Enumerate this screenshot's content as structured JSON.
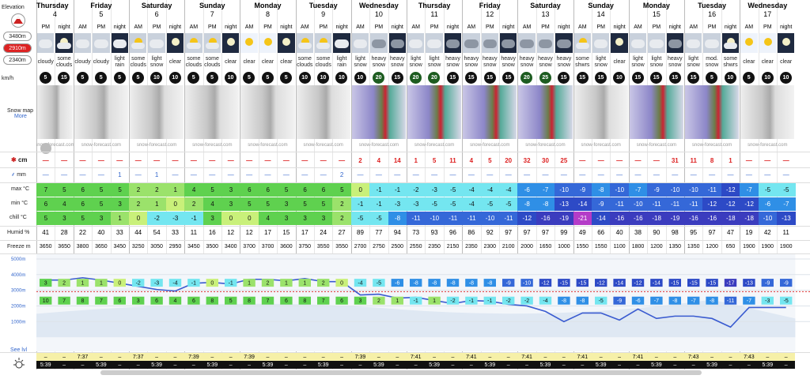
{
  "left": {
    "elevation": "Elevation",
    "levels": [
      {
        "value": 3480,
        "label": "3480m"
      },
      {
        "value": 2910,
        "label": "2910m"
      },
      {
        "value": 2340,
        "label": "2340m"
      }
    ],
    "wind_unit": "km/h",
    "snow_map": "Snow map",
    "more": "More",
    "snow_unit": "cm",
    "rain_unit": "mm",
    "max": "max °C",
    "min": "min °C",
    "chill": "chill °C",
    "humid": "Humid %",
    "freeze": "Freeze m",
    "sea_level": "See lvl"
  },
  "days": [
    {
      "name": "Thursday",
      "date": "4",
      "periods": [
        "PM",
        "night"
      ]
    },
    {
      "name": "Friday",
      "date": "5",
      "periods": [
        "AM",
        "PM",
        "night"
      ]
    },
    {
      "name": "Saturday",
      "date": "6",
      "periods": [
        "AM",
        "PM",
        "night"
      ]
    },
    {
      "name": "Sunday",
      "date": "7",
      "periods": [
        "AM",
        "PM",
        "night"
      ]
    },
    {
      "name": "Monday",
      "date": "8",
      "periods": [
        "AM",
        "PM",
        "night"
      ]
    },
    {
      "name": "Tuesday",
      "date": "9",
      "periods": [
        "AM",
        "PM",
        "night"
      ]
    },
    {
      "name": "Wednesday",
      "date": "10",
      "periods": [
        "AM",
        "PM",
        "night"
      ]
    },
    {
      "name": "Thursday",
      "date": "11",
      "periods": [
        "AM",
        "PM",
        "night"
      ]
    },
    {
      "name": "Friday",
      "date": "12",
      "periods": [
        "AM",
        "PM",
        "night"
      ]
    },
    {
      "name": "Saturday",
      "date": "13",
      "periods": [
        "AM",
        "PM",
        "night"
      ]
    },
    {
      "name": "Sunday",
      "date": "14",
      "periods": [
        "AM",
        "PM",
        "night"
      ]
    },
    {
      "name": "Monday",
      "date": "15",
      "periods": [
        "AM",
        "PM",
        "night"
      ]
    },
    {
      "name": "Tuesday",
      "date": "16",
      "periods": [
        "AM",
        "PM",
        "night"
      ]
    },
    {
      "name": "Wednesday",
      "date": "17",
      "periods": [
        "AM",
        "PM",
        "night"
      ]
    }
  ],
  "rows": {
    "summary": [
      "cloudy",
      "some clouds",
      "cloudy",
      "cloudy",
      "light rain",
      "some clouds",
      "light snow",
      "clear",
      "some clouds",
      "some clouds",
      "clear",
      "clear",
      "clear",
      "clear",
      "some clouds",
      "some clouds",
      "light rain",
      "light snow",
      "heavy snow",
      "heavy snow",
      "light snow",
      "light snow",
      "heavy snow",
      "heavy snow",
      "heavy snow",
      "heavy snow",
      "heavy snow",
      "heavy snow",
      "heavy snow",
      "some shwrs",
      "light snow",
      "clear",
      "light snow",
      "light snow",
      "heavy snow",
      "light snow",
      "mod. snow",
      "some shwrs",
      "clear",
      "clear",
      "clear"
    ],
    "wind": [
      5,
      15,
      5,
      5,
      5,
      5,
      10,
      10,
      5,
      5,
      10,
      5,
      5,
      5,
      10,
      10,
      10,
      10,
      20,
      15,
      20,
      20,
      15,
      15,
      15,
      15,
      20,
      25,
      15,
      15,
      15,
      10,
      15,
      15,
      15,
      15,
      5,
      10,
      5,
      10,
      10
    ],
    "snow": [
      "—",
      "—",
      "—",
      "—",
      "—",
      "—",
      "—",
      "—",
      "—",
      "—",
      "—",
      "—",
      "—",
      "—",
      "—",
      "—",
      "—",
      2,
      4,
      14,
      1,
      5,
      11,
      4,
      5,
      20,
      32,
      30,
      25,
      "—",
      "—",
      "—",
      "—",
      "—",
      31,
      11,
      8,
      1,
      "—",
      "—",
      "—"
    ],
    "rain": [
      "—",
      "—",
      "—",
      "—",
      1,
      "—",
      1,
      "—",
      "—",
      "—",
      "—",
      "—",
      "—",
      "—",
      "—",
      "—",
      2,
      "—",
      "—",
      "—",
      "—",
      "—",
      "—",
      "—",
      "—",
      "—",
      "—",
      "—",
      "—",
      "—",
      "—",
      "—",
      "—",
      "—",
      "—",
      "—",
      "—",
      "—",
      "—",
      "—",
      "—"
    ],
    "max": [
      7,
      5,
      6,
      5,
      5,
      2,
      2,
      1,
      4,
      5,
      3,
      6,
      6,
      5,
      6,
      6,
      5,
      0,
      -1,
      -1,
      -2,
      -3,
      -5,
      -4,
      -4,
      -4,
      -6,
      -7,
      -10,
      -9,
      -8,
      -10,
      -7,
      -9,
      -10,
      -10,
      -11,
      -12,
      -7,
      -5,
      -5
    ],
    "min": [
      6,
      4,
      6,
      5,
      3,
      2,
      1,
      0,
      2,
      4,
      3,
      5,
      5,
      3,
      5,
      5,
      2,
      -1,
      -1,
      -3,
      -3,
      -5,
      -5,
      -4,
      -5,
      -5,
      -8,
      -8,
      -13,
      -14,
      -9,
      -11,
      -10,
      -11,
      -11,
      -11,
      -12,
      -12,
      -12,
      -6,
      -7
    ],
    "chill": [
      5,
      3,
      5,
      3,
      1,
      0,
      -2,
      -3,
      -1,
      3,
      0,
      0,
      4,
      3,
      3,
      3,
      2,
      -5,
      -5,
      -8,
      -11,
      -10,
      -11,
      -11,
      -10,
      -11,
      -12,
      -16,
      -19,
      -21,
      -14,
      -16,
      -16,
      -18,
      -19,
      -16,
      -16,
      -18,
      -18,
      -10,
      -13
    ],
    "humid": [
      41,
      28,
      22,
      40,
      33,
      44,
      54,
      33,
      11,
      16,
      12,
      12,
      17,
      15,
      17,
      24,
      27,
      89,
      77,
      94,
      73,
      93,
      96,
      86,
      92,
      97,
      97,
      97,
      99,
      49,
      66,
      40,
      38,
      90,
      98,
      95,
      97,
      47,
      19,
      42,
      11
    ],
    "freeze": [
      3650,
      3650,
      3800,
      3650,
      3450,
      3250,
      3050,
      2950,
      3450,
      3500,
      3400,
      3700,
      3700,
      3600,
      3750,
      3550,
      3550,
      2700,
      2750,
      2500,
      2550,
      2350,
      2150,
      2350,
      2300,
      2100,
      2000,
      1650,
      1000,
      1550,
      1550,
      1100,
      1800,
      1200,
      1350,
      1350,
      1200,
      650,
      1900,
      1900,
      1900
    ]
  },
  "watermark": "snow-forecast.com",
  "chart": {
    "ylim": [
      -900,
      5300
    ],
    "yticks": [
      {
        "value": 5000,
        "label": "5000m"
      },
      {
        "value": 4000,
        "label": "4000m"
      },
      {
        "value": 3000,
        "label": "3000m"
      },
      {
        "value": 2000,
        "label": "2000m"
      },
      {
        "value": 1000,
        "label": "1000m"
      }
    ],
    "upper_temps": [
      3,
      2,
      1,
      1,
      0,
      -2,
      -3,
      -4,
      -1,
      0,
      -1,
      1,
      2,
      1,
      1,
      2,
      0,
      -4,
      -5,
      -6,
      -8,
      -8,
      -8,
      -8,
      -8,
      -9,
      -10,
      -12,
      -15,
      -15,
      -12,
      -14,
      -12,
      -14,
      -15,
      -15,
      -15,
      -17,
      -13,
      -9,
      -9
    ],
    "lower_temps": [
      10,
      7,
      8,
      7,
      6,
      3,
      6,
      4,
      6,
      8,
      5,
      8,
      7,
      6,
      8,
      7,
      6,
      3,
      2,
      1,
      -1,
      1,
      -2,
      -1,
      -1,
      -2,
      -2,
      -4,
      -8,
      -8,
      -5,
      -9,
      -6,
      -7,
      -8,
      -7,
      -8,
      -11,
      -7,
      -3,
      -5
    ]
  },
  "sun": {
    "dash": "–",
    "sunrise": [
      "–",
      "7:37",
      "7:37",
      "7:39",
      "7:39",
      "–",
      "7:39",
      "7:41",
      "7:41",
      "7:41",
      "7:41",
      "7:41",
      "7:43",
      "7:43"
    ],
    "sunset": [
      "5:39",
      "5:39",
      "5:39",
      "5:39",
      "5:39",
      "5:39",
      "5:39",
      "5:39",
      "5:39",
      "5:39",
      "5:39",
      "5:39",
      "5:39",
      "5:39"
    ]
  }
}
